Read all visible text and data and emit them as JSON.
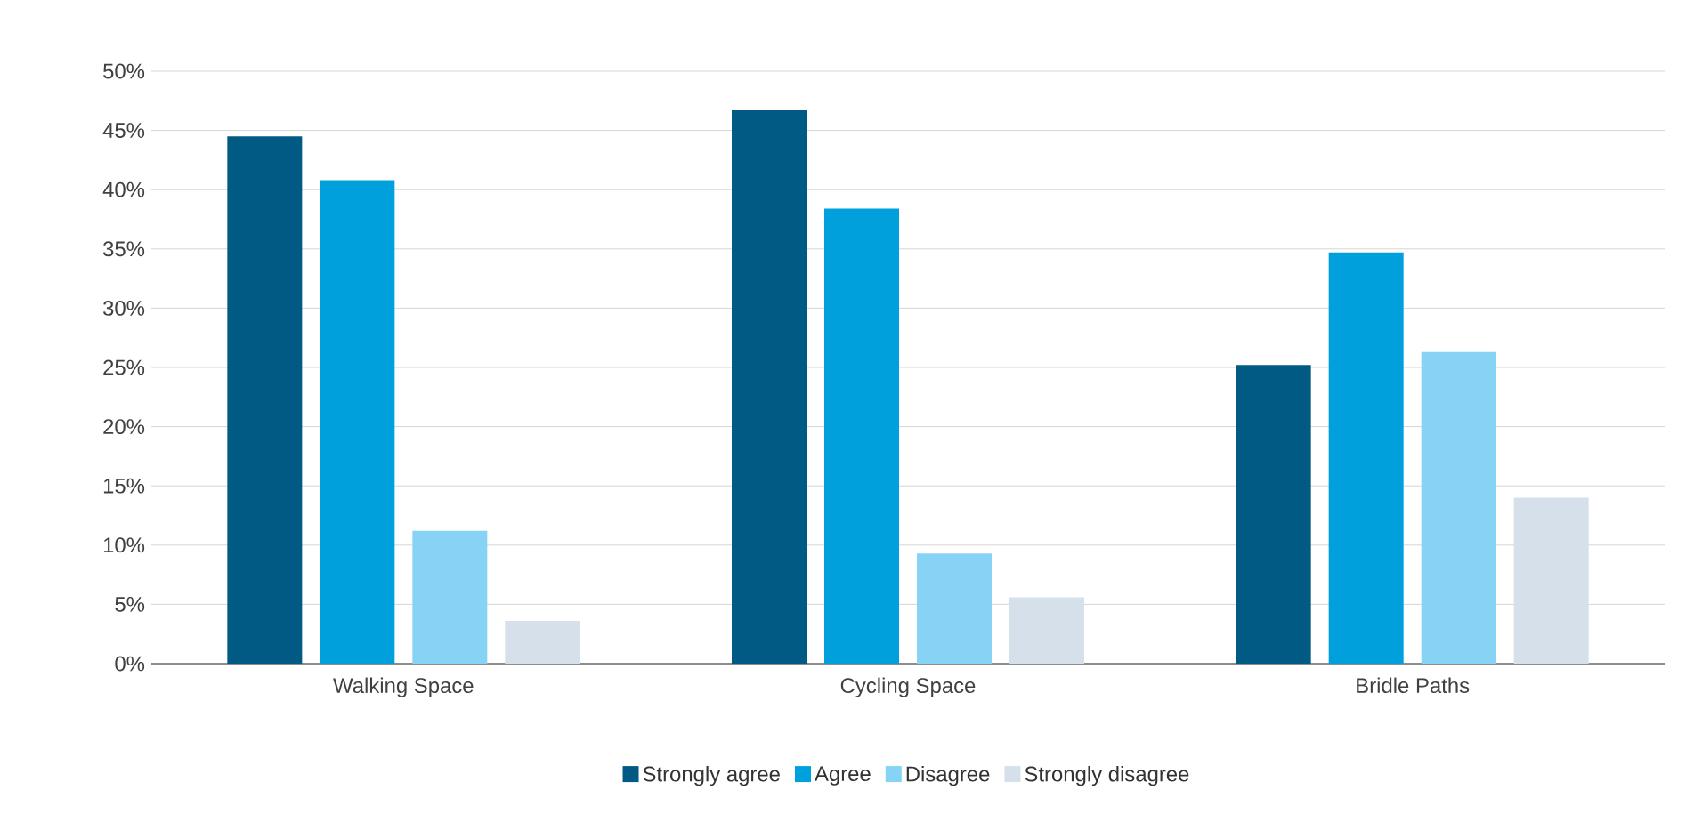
{
  "chart_data": {
    "type": "bar",
    "categories": [
      "Walking Space",
      "Cycling Space",
      "Bridle Paths"
    ],
    "series": [
      {
        "name": "Strongly agree",
        "color": "#005a84",
        "values": [
          44.5,
          46.7,
          25.2
        ]
      },
      {
        "name": "Agree",
        "color": "#00a0dc",
        "values": [
          40.8,
          38.4,
          34.7
        ]
      },
      {
        "name": "Disagree",
        "color": "#87d3f5",
        "values": [
          11.2,
          9.3,
          26.3
        ]
      },
      {
        "name": "Strongly disagree",
        "color": "#d6e0ea",
        "values": [
          3.6,
          5.6,
          14.0
        ]
      }
    ],
    "ylim": [
      0,
      50
    ],
    "yticks": [
      {
        "value": 0,
        "label": "0%"
      },
      {
        "value": 5,
        "label": "5%"
      },
      {
        "value": 10,
        "label": "10%"
      },
      {
        "value": 15,
        "label": "15%"
      },
      {
        "value": 20,
        "label": "20%"
      },
      {
        "value": 25,
        "label": "25%"
      },
      {
        "value": 30,
        "label": "30%"
      },
      {
        "value": 35,
        "label": "35%"
      },
      {
        "value": 40,
        "label": "40%"
      },
      {
        "value": 45,
        "label": "45%"
      },
      {
        "value": 50,
        "label": "50%"
      }
    ],
    "grid": "y",
    "legend": "bottom"
  }
}
